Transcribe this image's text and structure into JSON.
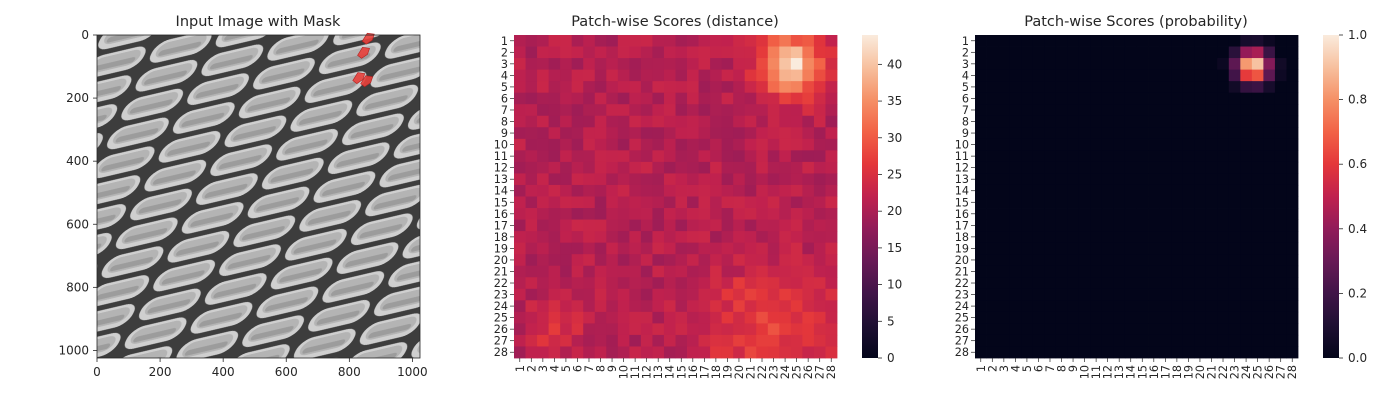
{
  "chart_data": [
    {
      "type": "image",
      "title": "Input Image with Mask",
      "xlim": [
        0,
        1024
      ],
      "ylim": [
        1024,
        0
      ],
      "xticks": [
        0,
        200,
        400,
        600,
        800,
        1000
      ],
      "yticks": [
        0,
        200,
        400,
        600,
        800,
        1000
      ],
      "pattern": "diagonal woven mesh, grayscale",
      "mask": {
        "color": "#e8403b",
        "regions": [
          {
            "x": 860,
            "y": 10
          },
          {
            "x": 845,
            "y": 55
          },
          {
            "x": 830,
            "y": 135
          },
          {
            "x": 855,
            "y": 145
          }
        ]
      }
    },
    {
      "type": "heatmap",
      "title": "Patch-wise Scores (distance)",
      "rows": 28,
      "cols": 28,
      "tick_labels": [
        "1",
        "2",
        "3",
        "4",
        "5",
        "6",
        "7",
        "8",
        "9",
        "10",
        "11",
        "12",
        "13",
        "14",
        "15",
        "16",
        "17",
        "18",
        "19",
        "20",
        "21",
        "22",
        "23",
        "24",
        "25",
        "26",
        "27",
        "28"
      ],
      "colorbar": {
        "range": [
          0,
          44
        ],
        "ticks": [
          0,
          5,
          10,
          15,
          20,
          25,
          30,
          35,
          40
        ],
        "colormap": "rocket"
      },
      "base_value": 21,
      "hotspots": [
        {
          "row": 3.2,
          "col": 24.5,
          "value": 43,
          "spread": 1.8
        },
        {
          "row": 25.5,
          "col": 22.5,
          "value": 26,
          "spread": 3.5
        },
        {
          "row": 26,
          "col": 4,
          "value": 26,
          "spread": 1.5
        }
      ],
      "coldspots": [
        {
          "row": 2,
          "col": 10,
          "value": 15,
          "spread": 3
        },
        {
          "row": 11,
          "col": 11,
          "value": 15,
          "spread": 3
        },
        {
          "row": 19,
          "col": 8,
          "value": 15.5,
          "spread": 2.5
        }
      ]
    },
    {
      "type": "heatmap",
      "title": "Patch-wise Scores (probability)",
      "rows": 28,
      "cols": 28,
      "tick_labels": [
        "1",
        "2",
        "3",
        "4",
        "5",
        "6",
        "7",
        "8",
        "9",
        "10",
        "11",
        "12",
        "13",
        "14",
        "15",
        "16",
        "17",
        "18",
        "19",
        "20",
        "21",
        "22",
        "23",
        "24",
        "25",
        "26",
        "27",
        "28"
      ],
      "colorbar": {
        "range": [
          0,
          1
        ],
        "ticks": [
          "0.0",
          "0.2",
          "0.4",
          "0.6",
          "0.8",
          "1.0"
        ],
        "colormap": "rocket"
      },
      "base_value": 0.0,
      "hotspots": [
        {
          "row": 3.2,
          "col": 24.6,
          "value": 1.0,
          "spread": 1.0
        }
      ]
    }
  ]
}
